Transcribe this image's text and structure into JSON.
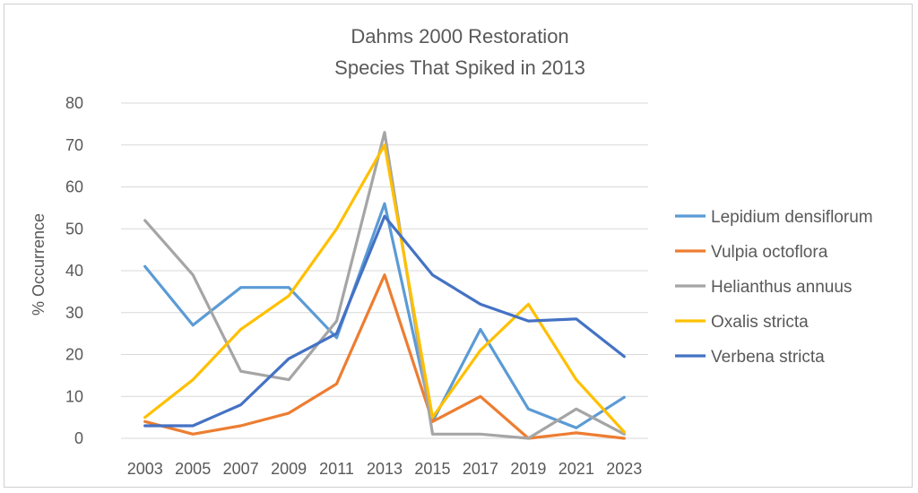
{
  "chart_data": {
    "type": "line",
    "title": "Dahms 2000 Restoration",
    "subtitle": "Species That Spiked in 2013",
    "xlabel": "",
    "ylabel": "% Occurrence",
    "ylim": [
      0,
      80
    ],
    "yticks": [
      0,
      10,
      20,
      30,
      40,
      50,
      60,
      70,
      80
    ],
    "grid": true,
    "legend_position": "right",
    "categories": [
      "2003",
      "2005",
      "2007",
      "2009",
      "2011",
      "2013",
      "2015",
      "2017",
      "2019",
      "2021",
      "2023"
    ],
    "series": [
      {
        "name": "Lepidium densiflorum",
        "color": "#5b9bd5",
        "values": [
          41,
          27,
          36,
          36,
          24,
          56,
          4,
          26,
          7,
          2.5,
          9.8
        ]
      },
      {
        "name": "Vulpia octoflora",
        "color": "#ed7d31",
        "values": [
          4,
          1,
          3,
          6,
          13,
          39,
          4,
          10,
          0,
          1.3,
          0
        ]
      },
      {
        "name": "Helianthus annuus",
        "color": "#a5a5a5",
        "values": [
          52,
          39,
          16,
          14,
          28,
          73,
          1,
          1,
          0,
          7,
          1
        ]
      },
      {
        "name": "Oxalis stricta",
        "color": "#ffc000",
        "values": [
          5,
          14,
          26,
          34,
          50,
          70,
          5,
          21,
          32,
          14,
          1.5
        ]
      },
      {
        "name": "Verbena stricta",
        "color": "#4472c4",
        "values": [
          3,
          3,
          8,
          19,
          25,
          53,
          39,
          32,
          28,
          28.5,
          19.5
        ]
      }
    ]
  }
}
